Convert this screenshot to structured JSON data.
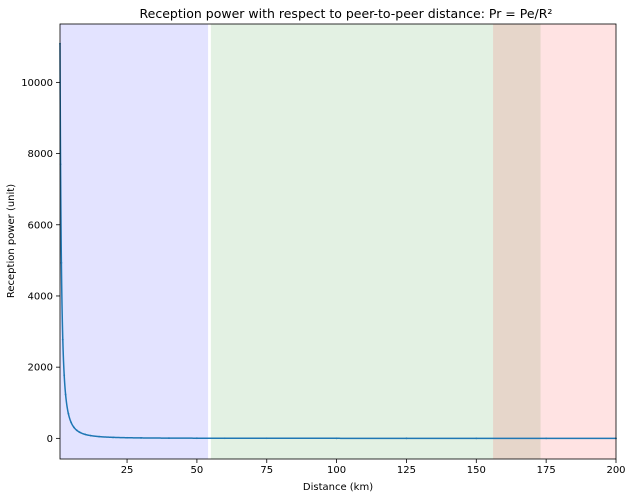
{
  "chart_data": {
    "type": "line",
    "title": "Reception power with respect to peer-to-peer distance: Pr = Pe/R²",
    "xlabel": "Distance (km)",
    "ylabel": "Reception power (unit)",
    "xlim": [
      1,
      200
    ],
    "ylim": [
      -580,
      11640
    ],
    "xticks": [
      25,
      50,
      75,
      100,
      125,
      150,
      175,
      200
    ],
    "yticks": [
      0,
      2000,
      4000,
      6000,
      8000,
      10000
    ],
    "grid": false,
    "line_color": "#1f77b4",
    "series": [
      {
        "formula": "Pr = Pe/R²",
        "pe": 11088,
        "x": [
          1,
          1.2,
          1.5,
          2,
          2.5,
          3,
          4,
          5,
          6,
          7,
          8,
          10,
          12,
          15,
          20,
          25,
          30,
          40,
          50,
          60,
          75,
          100,
          125,
          150,
          175,
          200
        ],
        "y": [
          11088,
          7700,
          4928,
          2772,
          1774,
          1232,
          693,
          444,
          308,
          226,
          173,
          111,
          77,
          49,
          28,
          18,
          12,
          7,
          4,
          3,
          2,
          1,
          1,
          0,
          0,
          0
        ]
      }
    ],
    "bands": [
      {
        "x0": 1,
        "x1": 54,
        "color": "#0000ff",
        "opacity": 0.11
      },
      {
        "x0": 55,
        "x1": 173,
        "color": "#008000",
        "opacity": 0.11
      },
      {
        "x0": 156,
        "x1": 200,
        "color": "#ff0000",
        "opacity": 0.11
      }
    ]
  }
}
